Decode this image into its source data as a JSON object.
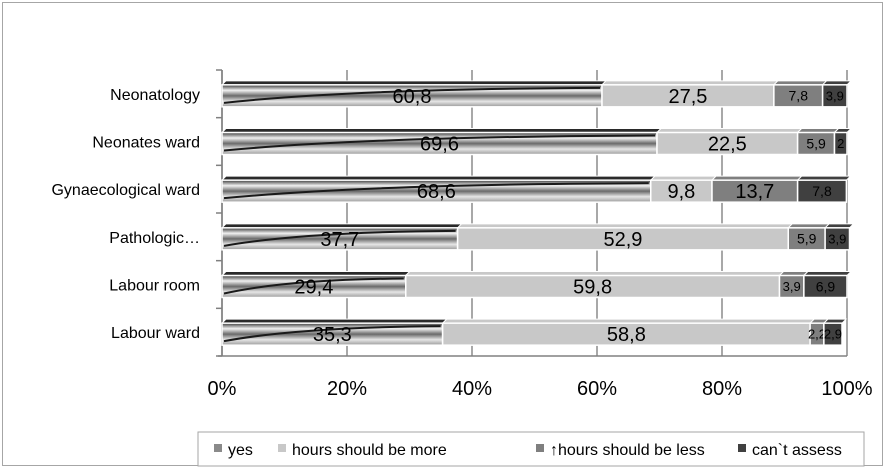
{
  "chart_data": {
    "type": "bar",
    "orientation": "horizontal",
    "stacked": "percent",
    "categories": [
      "Neonatology",
      "Neonates ward",
      "Gynaecological ward",
      "Pathologic…",
      "Labour room",
      "Labour ward"
    ],
    "series": [
      {
        "name": "yes",
        "values": [
          60.8,
          69.6,
          68.6,
          37.7,
          29.4,
          35.3
        ],
        "labels": [
          "60,8",
          "69,6",
          "68,6",
          "37,7",
          "29,4",
          "35,3"
        ],
        "color": "#5a5a5a"
      },
      {
        "name": "hours should be more",
        "values": [
          27.5,
          22.5,
          9.8,
          52.9,
          59.8,
          58.8
        ],
        "labels": [
          "27,5",
          "22,5",
          "9,8",
          "52,9",
          "59,8",
          "58,8"
        ],
        "color": "#c8c8c8"
      },
      {
        "name": "↑hours should be less",
        "values": [
          7.8,
          5.9,
          13.7,
          5.9,
          3.9,
          2.2
        ],
        "labels": [
          "7,8",
          "5,9",
          "13,7",
          "5,9",
          "3,9",
          "2,2"
        ],
        "color": "#7f7f7f"
      },
      {
        "name": "can`t assess",
        "values": [
          3.9,
          2.0,
          7.8,
          3.9,
          6.9,
          2.9
        ],
        "labels": [
          "3,9",
          "2",
          "7,8",
          "3,9",
          "6,9",
          "2,9"
        ],
        "color": "#404040"
      }
    ],
    "x_ticks": [
      "0%",
      "20%",
      "40%",
      "60%",
      "80%",
      "100%"
    ],
    "xlim": [
      0,
      100
    ],
    "grid": true,
    "legend_position": "bottom"
  }
}
